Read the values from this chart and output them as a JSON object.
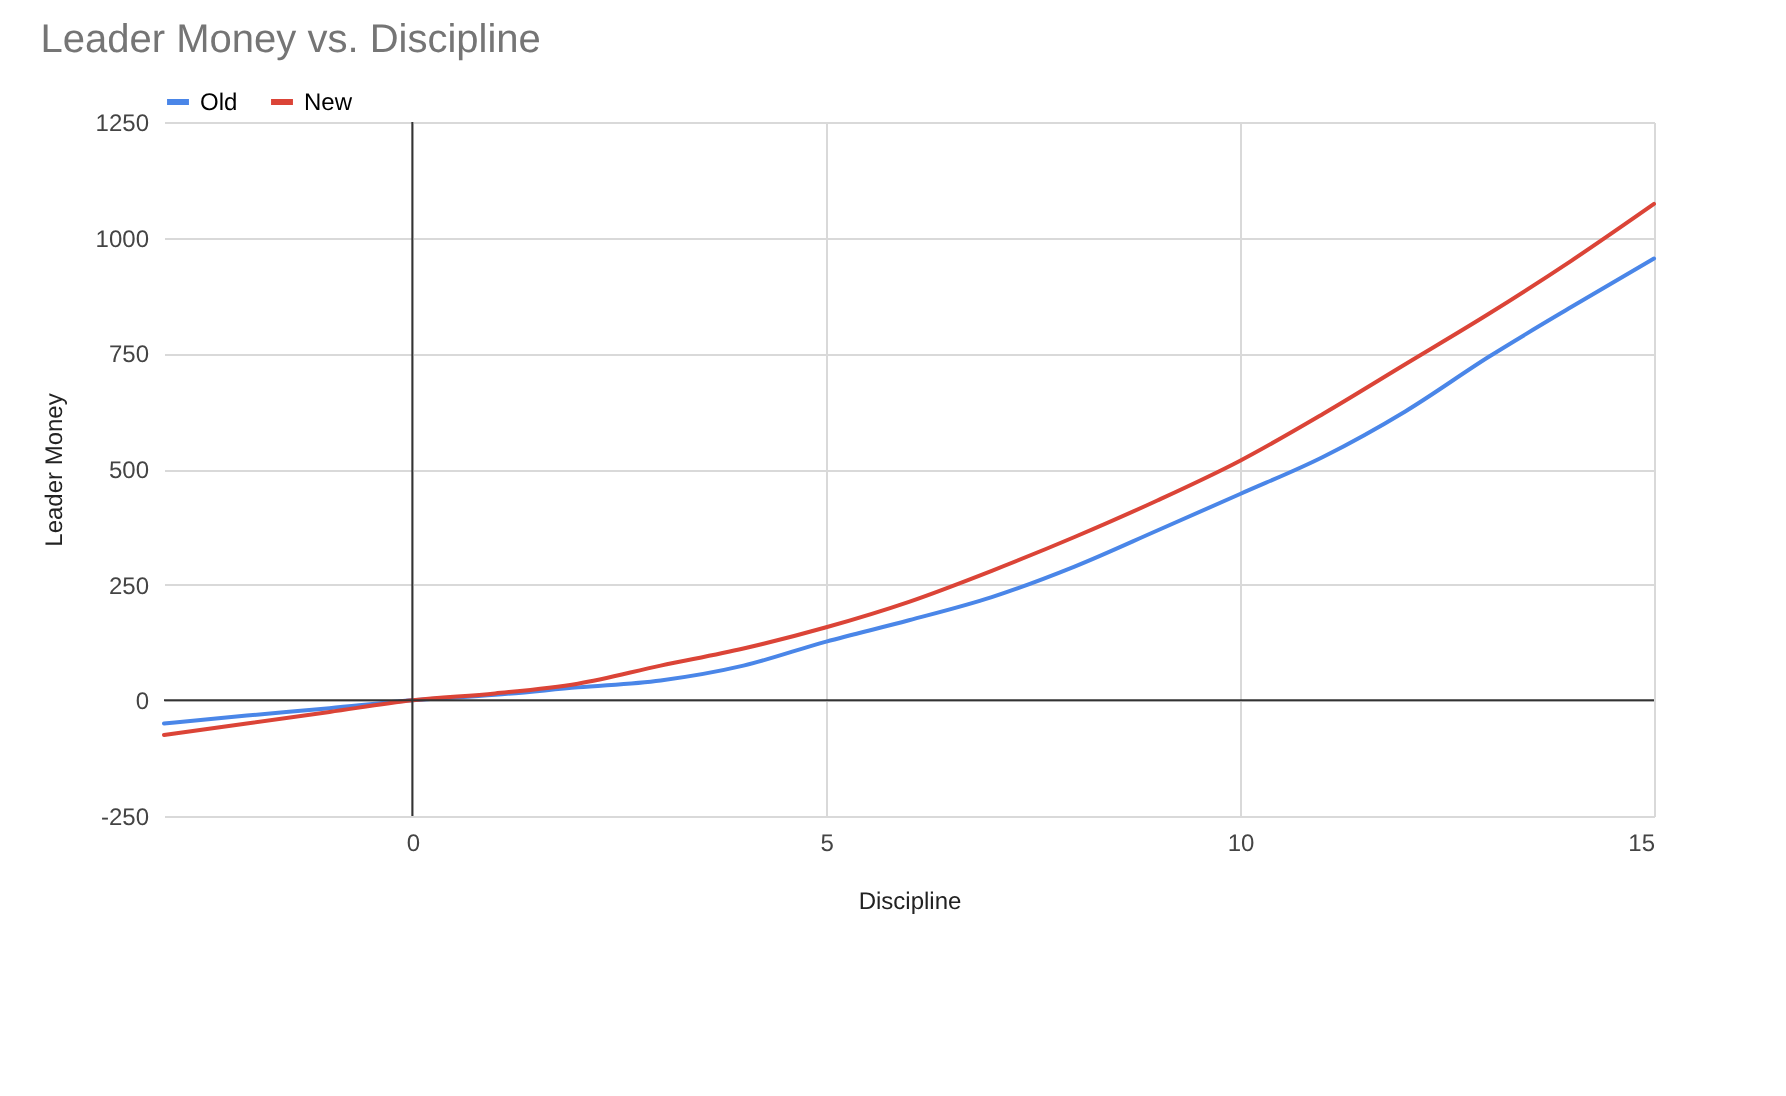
{
  "chart_data": {
    "type": "line",
    "title": "Leader Money vs. Discipline",
    "xlabel": "Discipline",
    "ylabel": "Leader Money",
    "x": [
      -3,
      -2,
      -1,
      0,
      1,
      2,
      3,
      4,
      5,
      6,
      7,
      8,
      9,
      10,
      11,
      12,
      13,
      14,
      15
    ],
    "series": [
      {
        "name": "Old",
        "color": "#4a86e8",
        "values": [
          -50,
          -33,
          -17,
          0,
          12,
          28,
          43,
          75,
          127,
          173,
          223,
          289,
          367,
          446,
          526,
          625,
          742,
          850,
          955
        ]
      },
      {
        "name": "New",
        "color": "#db4437",
        "values": [
          -75,
          -50,
          -25,
          0,
          15,
          36,
          75,
          112,
          158,
          213,
          280,
          353,
          432,
          518,
          619,
          727,
          835,
          950,
          1073
        ]
      }
    ],
    "xlim": [
      -3,
      15
    ],
    "xticks": [
      0,
      5,
      10,
      15
    ],
    "ylim": [
      -250,
      1250
    ],
    "yticks": [
      -250,
      0,
      250,
      500,
      750,
      1000,
      1250
    ],
    "grid": true,
    "legend": "top",
    "marker": "none",
    "line_style": "solid"
  }
}
